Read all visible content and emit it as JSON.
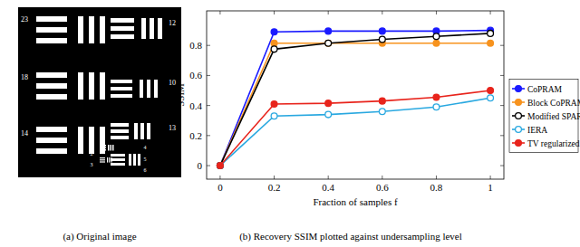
{
  "image": {
    "caption": "(a) Original image",
    "labels": [
      "23",
      "12",
      "18",
      "10",
      "14",
      "13",
      "1",
      "2",
      "3",
      "4",
      "5",
      "6"
    ]
  },
  "chart_data": {
    "type": "line",
    "title": "(b) Recovery SSIM plotted against undersampling level",
    "x_label": "Fraction of samples f",
    "y_label": "SSIM",
    "x": [
      0,
      0.2,
      0.4,
      0.6,
      0.8,
      1
    ],
    "series": [
      {
        "name": "CoPRAM",
        "color": "#1a1aff",
        "marker": "circle",
        "values": [
          0,
          0.89,
          0.895,
          0.895,
          0.895,
          0.9
        ]
      },
      {
        "name": "Block CoPRAM",
        "color": "#f7931e",
        "marker": "circle",
        "values": [
          0,
          0.815,
          0.815,
          0.815,
          0.815,
          0.815
        ]
      },
      {
        "name": "Modified SPARTA",
        "color": "#000000",
        "marker": "circle-open",
        "values": [
          0,
          0.775,
          0.815,
          0.84,
          0.86,
          0.88
        ]
      },
      {
        "name": "IERA",
        "color": "#29a8e0",
        "marker": "circle-open",
        "values": [
          0,
          0.33,
          0.34,
          0.36,
          0.39,
          0.45
        ]
      },
      {
        "name": "TV regularized",
        "color": "#e8241c",
        "marker": "circle",
        "values": [
          0,
          0.41,
          0.415,
          0.43,
          0.455,
          0.5
        ]
      }
    ],
    "xlim": [
      -0.05,
      1.05
    ],
    "ylim": [
      -0.09,
      1.03
    ],
    "xticks": [
      0,
      0.2,
      0.4,
      0.6,
      0.8,
      1
    ],
    "yticks": [
      0,
      0.2,
      0.4,
      0.6,
      0.8
    ],
    "grid": false,
    "legend": "right"
  }
}
